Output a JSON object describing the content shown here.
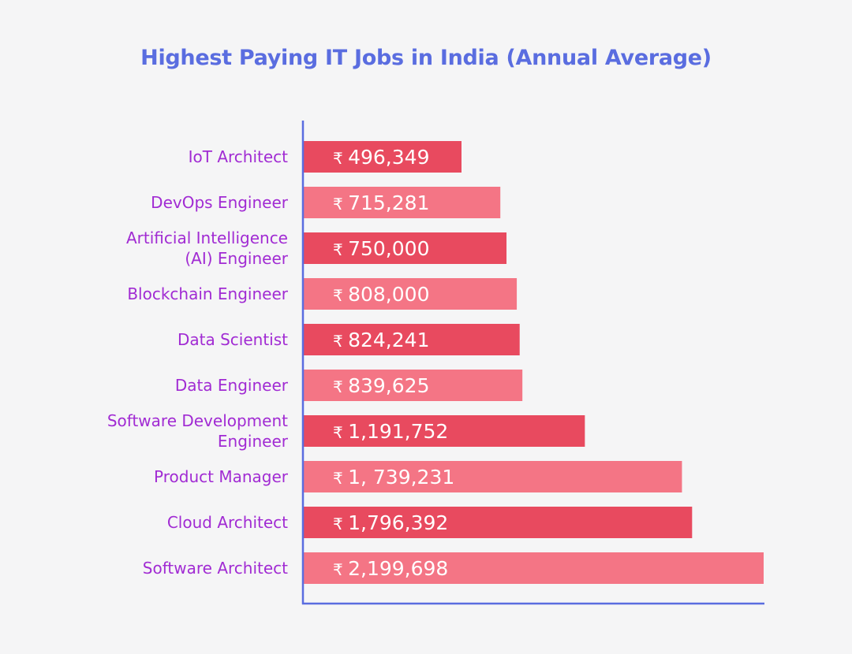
{
  "chart_data": {
    "type": "bar",
    "orientation": "horizontal",
    "title": "Highest Paying IT Jobs in India (Annual Average)",
    "xlabel": "",
    "ylabel": "",
    "currency_symbol": "₹",
    "grid": false,
    "legend": "none",
    "categories": [
      [
        "IoT Architect"
      ],
      [
        "DevOps Engineer"
      ],
      [
        "Artificial Intelligence",
        "(AI) Engineer"
      ],
      [
        "Blockchain Engineer"
      ],
      [
        "Data Scientist"
      ],
      [
        "Data Engineer"
      ],
      [
        "Software Development",
        "Engineer"
      ],
      [
        "Product Manager"
      ],
      [
        "Cloud Architect"
      ],
      [
        "Software Architect"
      ]
    ],
    "values": [
      496349,
      715281,
      750000,
      808000,
      824241,
      839625,
      1191752,
      1739231,
      1796392,
      2199698
    ],
    "value_labels": [
      "496,349",
      "715,281",
      "750,000",
      "808,000",
      "824,241",
      "839,625",
      "1,191,752",
      "1, 739,231",
      "1,796,392",
      "2,199,698"
    ],
    "colors": {
      "bar_dark": "#e84a5f",
      "bar_light": "#f47585",
      "axis": "#5a6de0",
      "category_text": "#a12bd3",
      "title": "#5a6de0"
    }
  }
}
